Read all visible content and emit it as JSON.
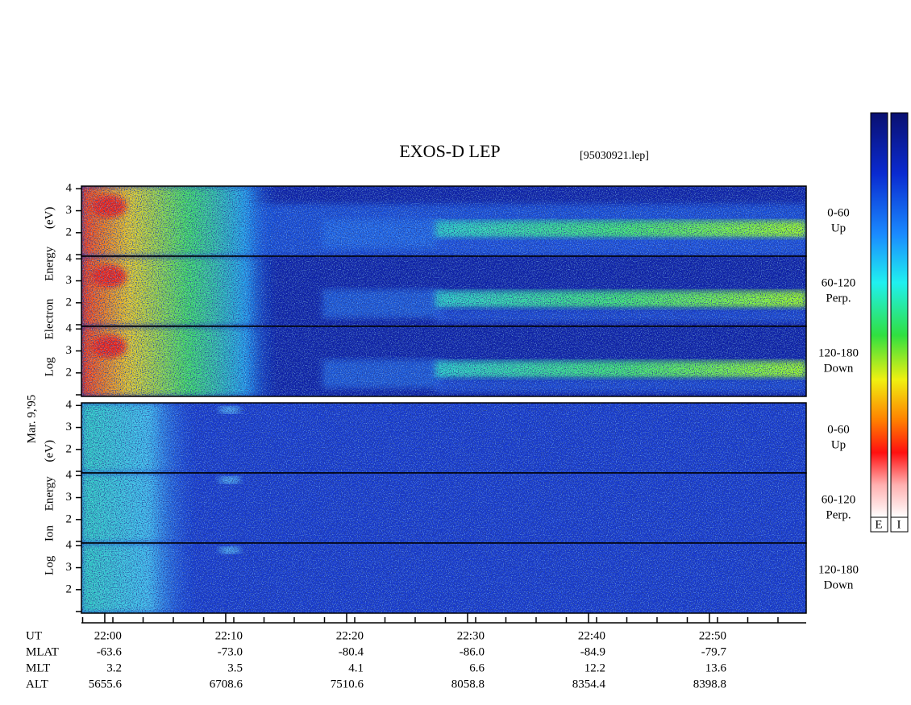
{
  "header": {
    "title": "EXOS-D LEP",
    "file": "[95030921.lep]"
  },
  "date": "Mar. 9,'95",
  "ylim": [
    0.93,
    4.12
  ],
  "yticks": [
    2,
    3,
    4
  ],
  "xlim": [
    -1.93,
    58
  ],
  "xticks": [
    {
      "value": 0,
      "label": "22:00"
    },
    {
      "value": 10,
      "label": "22:10"
    },
    {
      "value": 20,
      "label": "22:20"
    },
    {
      "value": 30,
      "label": "22:30"
    },
    {
      "value": 40,
      "label": "22:40"
    },
    {
      "value": 50,
      "label": "22:50"
    }
  ],
  "electron": {
    "label": "Log Electron Energy (eV)",
    "panels": [
      {
        "pitch": "0-60",
        "dir": "Up"
      },
      {
        "pitch": "60-120",
        "dir": "Perp."
      },
      {
        "pitch": "120-180",
        "dir": "Down"
      }
    ]
  },
  "ion": {
    "label": "Log Ion Energy (eV)",
    "panels": [
      {
        "pitch": "0-60",
        "dir": "Up"
      },
      {
        "pitch": "60-120",
        "dir": "Perp."
      },
      {
        "pitch": "120-180",
        "dir": "Down"
      }
    ]
  },
  "orbit": {
    "labels": [
      "UT",
      "MLAT",
      "MLT",
      "ALT"
    ],
    "rows": [
      [
        "-63.6",
        "-73.0",
        "-80.4",
        "-86.0",
        "-84.9",
        "-79.7"
      ],
      [
        "3.2",
        "3.5",
        "4.1",
        "6.6",
        "12.2",
        "13.6"
      ],
      [
        "5655.6",
        "6708.6",
        "7510.6",
        "8058.8",
        "8354.4",
        "8398.8"
      ]
    ]
  },
  "colorbars": [
    "E",
    "I"
  ]
}
